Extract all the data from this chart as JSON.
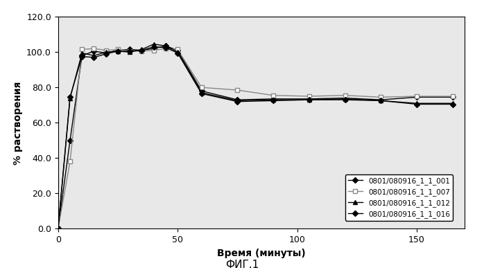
{
  "title": "",
  "xlabel": "Время (минуты)",
  "ylabel": "% растворения",
  "caption": "ФИГ.1",
  "xlim": [
    0,
    170
  ],
  "ylim": [
    0.0,
    120.0
  ],
  "yticks": [
    0.0,
    20.0,
    40.0,
    60.0,
    80.0,
    100.0,
    120.0
  ],
  "xticks": [
    0,
    50,
    100,
    150
  ],
  "series": [
    {
      "label": "0801/080916_1_1_001",
      "marker": "D",
      "markersize": 4,
      "color": "#000000",
      "linewidth": 1.0,
      "x": [
        0,
        5,
        10,
        15,
        20,
        25,
        30,
        35,
        40,
        45,
        50,
        60,
        75,
        90,
        105,
        120,
        135,
        150,
        165
      ],
      "y": [
        0.0,
        50.0,
        98.0,
        100.5,
        99.5,
        101.0,
        101.5,
        101.0,
        102.0,
        103.5,
        101.0,
        78.0,
        73.0,
        73.5,
        73.5,
        74.0,
        73.0,
        74.5,
        74.5
      ]
    },
    {
      "label": "0801/080916_1_1_007",
      "marker": "s",
      "markersize": 4,
      "color": "#888888",
      "linewidth": 1.0,
      "markerfacecolor": "#ffffff",
      "markeredgecolor": "#888888",
      "x": [
        0,
        5,
        10,
        15,
        20,
        25,
        30,
        35,
        40,
        45,
        50,
        60,
        75,
        90,
        105,
        120,
        135,
        150,
        165
      ],
      "y": [
        0.0,
        38.0,
        101.5,
        102.0,
        101.0,
        101.5,
        100.5,
        100.5,
        101.0,
        102.0,
        101.5,
        80.0,
        78.5,
        75.5,
        75.0,
        75.5,
        74.5,
        75.0,
        75.0
      ]
    },
    {
      "label": "0801/080916_1_1_012",
      "marker": "^",
      "markersize": 5,
      "color": "#000000",
      "linewidth": 1.0,
      "x": [
        0,
        5,
        10,
        15,
        20,
        25,
        30,
        35,
        40,
        45,
        50,
        60,
        75,
        90,
        105,
        120,
        135,
        150,
        165
      ],
      "y": [
        0.0,
        74.0,
        99.5,
        98.0,
        100.0,
        100.5,
        100.0,
        101.5,
        104.5,
        103.5,
        100.0,
        77.0,
        72.5,
        73.0,
        73.0,
        73.5,
        72.5,
        71.0,
        71.0
      ]
    },
    {
      "label": "0801/080916_1_1_016",
      "marker": "D",
      "markersize": 4,
      "color": "#000000",
      "linewidth": 1.0,
      "x": [
        0,
        5,
        10,
        15,
        20,
        25,
        30,
        35,
        40,
        45,
        50,
        60,
        75,
        90,
        105,
        120,
        135,
        150,
        165
      ],
      "y": [
        0.0,
        74.5,
        97.5,
        97.0,
        99.0,
        100.5,
        100.5,
        101.0,
        103.0,
        102.5,
        99.5,
        76.5,
        72.0,
        72.5,
        73.0,
        73.0,
        72.5,
        70.5,
        70.5
      ]
    }
  ],
  "legend_loc": "lower right",
  "legend_fontsize": 7.5,
  "axis_label_fontsize": 10,
  "tick_fontsize": 9,
  "caption_fontsize": 11,
  "background_color": "#ffffff",
  "plot_bg_color": "#e8e8e8"
}
